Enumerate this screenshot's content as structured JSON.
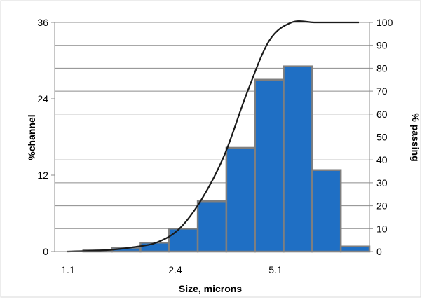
{
  "chart_data": {
    "type": "bar",
    "title": "",
    "xlabel": "Size, microns",
    "ylabel_left": "%channel",
    "ylabel_right": "% passing",
    "x_ticks": [
      "1.1",
      "2.4",
      "5.1"
    ],
    "y_left_ticks": [
      "0",
      "12",
      "24",
      "36"
    ],
    "y_right_ticks": [
      "0",
      "10",
      "20",
      "30",
      "40",
      "50",
      "60",
      "70",
      "80",
      "90",
      "100"
    ],
    "ylim_left": [
      0,
      36
    ],
    "ylim_right": [
      0,
      100
    ],
    "grid": true,
    "legend": "none",
    "bar_color": "#1f6fc4",
    "line_color": "#1a1a1a",
    "series": [
      {
        "type": "bar",
        "axis": "left",
        "values": [
          0,
          0.2,
          0.6,
          1.4,
          3.6,
          7.9,
          16.3,
          27,
          29.1,
          12.8,
          0.8
        ]
      },
      {
        "type": "line",
        "axis": "right",
        "values": [
          0,
          0.3,
          0.8,
          2,
          4,
          10,
          23,
          42,
          69,
          92,
          100,
          100,
          100,
          100
        ]
      }
    ]
  }
}
